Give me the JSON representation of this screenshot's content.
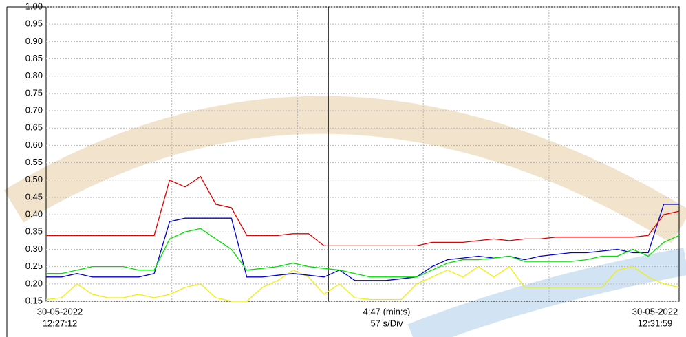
{
  "chart_data": {
    "type": "line",
    "x": [
      0,
      7,
      14,
      21,
      28,
      35,
      42,
      49,
      56,
      63,
      70,
      77,
      84,
      91,
      98,
      105,
      112,
      119,
      126,
      133,
      140,
      147,
      154,
      161,
      168,
      175,
      182,
      189,
      196,
      203,
      210,
      217,
      224,
      231,
      238,
      245,
      252,
      259,
      266,
      273,
      280,
      287
    ],
    "series": [
      {
        "color": "#e00000",
        "values": [
          0.34,
          0.34,
          0.34,
          0.34,
          0.34,
          0.34,
          0.34,
          0.34,
          0.5,
          0.48,
          0.51,
          0.43,
          0.42,
          0.34,
          0.34,
          0.34,
          0.345,
          0.345,
          0.31,
          0.31,
          0.31,
          0.31,
          0.31,
          0.31,
          0.31,
          0.32,
          0.32,
          0.32,
          0.325,
          0.33,
          0.325,
          0.33,
          0.33,
          0.335,
          0.335,
          0.335,
          0.335,
          0.335,
          0.335,
          0.34,
          0.4,
          0.41
        ]
      },
      {
        "color": "#00e000",
        "values": [
          0.23,
          0.23,
          0.24,
          0.25,
          0.25,
          0.25,
          0.24,
          0.24,
          0.33,
          0.35,
          0.36,
          0.33,
          0.3,
          0.24,
          0.245,
          0.25,
          0.26,
          0.25,
          0.245,
          0.24,
          0.23,
          0.22,
          0.22,
          0.22,
          0.22,
          0.24,
          0.26,
          0.27,
          0.27,
          0.275,
          0.28,
          0.265,
          0.265,
          0.265,
          0.265,
          0.27,
          0.28,
          0.28,
          0.3,
          0.28,
          0.32,
          0.34
        ]
      },
      {
        "color": "#0000d0",
        "values": [
          0.22,
          0.22,
          0.23,
          0.22,
          0.22,
          0.22,
          0.22,
          0.23,
          0.38,
          0.39,
          0.39,
          0.39,
          0.39,
          0.22,
          0.22,
          0.225,
          0.23,
          0.225,
          0.22,
          0.24,
          0.21,
          0.21,
          0.21,
          0.215,
          0.22,
          0.25,
          0.27,
          0.275,
          0.28,
          0.275,
          0.28,
          0.27,
          0.28,
          0.285,
          0.29,
          0.29,
          0.295,
          0.3,
          0.29,
          0.29,
          0.43,
          0.43
        ]
      },
      {
        "color": "#f0f000",
        "values": [
          0.155,
          0.16,
          0.2,
          0.17,
          0.16,
          0.16,
          0.17,
          0.16,
          0.17,
          0.19,
          0.2,
          0.16,
          0.15,
          0.15,
          0.19,
          0.21,
          0.24,
          0.22,
          0.17,
          0.2,
          0.16,
          0.155,
          0.155,
          0.155,
          0.2,
          0.22,
          0.24,
          0.22,
          0.25,
          0.22,
          0.25,
          0.19,
          0.19,
          0.19,
          0.19,
          0.19,
          0.19,
          0.24,
          0.25,
          0.22,
          0.2,
          0.19
        ]
      }
    ],
    "xlim": [
      0,
      287
    ],
    "xticks": [
      57,
      114,
      171,
      228
    ],
    "ylim": [
      0.15,
      1.0
    ],
    "yticks": [
      0.15,
      {
        "value": 0.2,
        "label": "0.20"
      },
      0.25,
      {
        "value": 0.3,
        "label": "0.30"
      },
      0.35,
      {
        "value": 0.4,
        "label": "0.40"
      },
      0.45,
      {
        "value": 0.5,
        "label": "0.50"
      },
      0.55,
      {
        "value": 0.6,
        "label": "0.60"
      },
      0.65,
      {
        "value": 0.7,
        "label": "0.70"
      },
      0.75,
      {
        "value": 0.8,
        "label": "0.80"
      },
      0.85,
      {
        "value": 0.9,
        "label": "0.90"
      },
      0.95,
      {
        "value": 1.0,
        "label": "1.00"
      }
    ],
    "grid": true,
    "x_start_label": [
      "30-05-2022",
      "12:27:12"
    ],
    "x_center_label": [
      "4:47 (min:s)",
      "57 s/Div"
    ],
    "x_end_label": [
      "30-05-2022",
      "12:31:59"
    ]
  }
}
